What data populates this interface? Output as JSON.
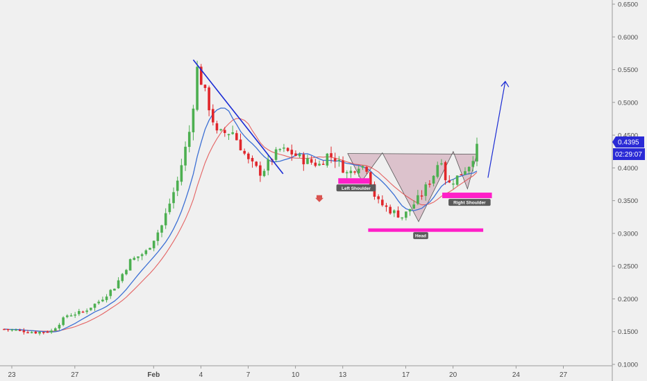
{
  "chart_data": {
    "type": "candlestick",
    "y_axis": {
      "ticks": [
        "0.6500",
        "0.6000",
        "0.5500",
        "0.5000",
        "0.4500",
        "0.4000",
        "0.3500",
        "0.3000",
        "0.2500",
        "0.2000",
        "0.1500",
        "0.1000"
      ],
      "ylim": [
        0.1,
        0.65
      ]
    },
    "x_axis": {
      "ticks": [
        {
          "label": "23",
          "day": 0
        },
        {
          "label": "27",
          "day": 4
        },
        {
          "label": "Feb",
          "day": 9,
          "bold": true
        },
        {
          "label": "4",
          "day": 12
        },
        {
          "label": "7",
          "day": 15
        },
        {
          "label": "10",
          "day": 18
        },
        {
          "label": "13",
          "day": 21
        },
        {
          "label": "17",
          "day": 25
        },
        {
          "label": "20",
          "day": 28
        },
        {
          "label": "24",
          "day": 32
        },
        {
          "label": "27",
          "day": 35
        }
      ]
    },
    "price_badge": {
      "price": "0.4395",
      "timer": "02:29:07",
      "value": 0.4395
    },
    "annotations": [
      {
        "label": "Left Shoulder"
      },
      {
        "label": "Head"
      },
      {
        "label": "Right Shoulder"
      }
    ],
    "colors": {
      "up": "#4caf50",
      "down": "#e0262b",
      "ma_fast": "#3b6fd4",
      "ma_slow": "#e24a4a",
      "trendline": "#1a2bd4",
      "magenta": "#ff1fc8",
      "pattern_fill": "#c48aa0",
      "badge": "#2a2ad6"
    }
  }
}
